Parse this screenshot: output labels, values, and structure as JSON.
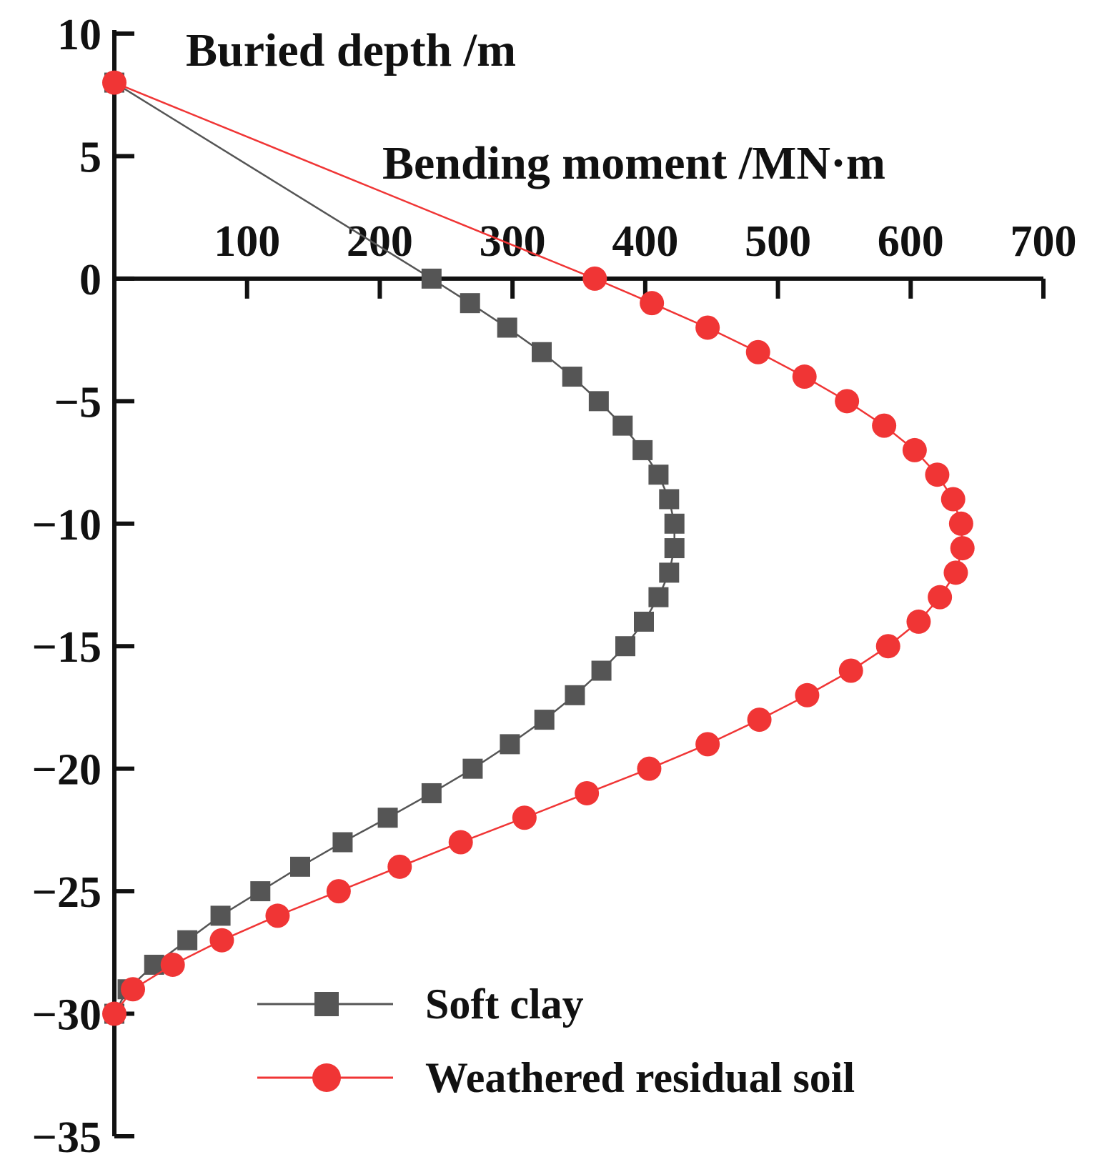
{
  "chart_data": {
    "type": "line",
    "title": "",
    "xlabel": "Bending moment /MN·m",
    "ylabel": "Buried depth /m",
    "xlim": [
      0,
      700
    ],
    "ylim": [
      -35,
      10
    ],
    "x_ticks": [
      100,
      200,
      300,
      400,
      500,
      600,
      700
    ],
    "y_ticks": [
      10,
      5,
      0,
      -5,
      -10,
      -15,
      -20,
      -25,
      -30,
      -35
    ],
    "x_axis_position": "top, crossing at depth 0",
    "grid": false,
    "legend_position": "bottom-center",
    "series": [
      {
        "name": "Soft clay",
        "color": "#555555",
        "marker": "square",
        "points": [
          [
            0,
            8
          ],
          [
            239,
            0
          ],
          [
            268,
            -1
          ],
          [
            296,
            -2
          ],
          [
            322,
            -3
          ],
          [
            345,
            -4
          ],
          [
            365,
            -5
          ],
          [
            383,
            -6
          ],
          [
            398,
            -7
          ],
          [
            410,
            -8
          ],
          [
            418,
            -9
          ],
          [
            422,
            -10
          ],
          [
            422,
            -11
          ],
          [
            418,
            -12
          ],
          [
            410,
            -13
          ],
          [
            399,
            -14
          ],
          [
            385,
            -15
          ],
          [
            367,
            -16
          ],
          [
            347,
            -17
          ],
          [
            324,
            -18
          ],
          [
            298,
            -19
          ],
          [
            270,
            -20
          ],
          [
            239,
            -21
          ],
          [
            206,
            -22
          ],
          [
            172,
            -23
          ],
          [
            140,
            -24
          ],
          [
            110,
            -25
          ],
          [
            80,
            -26
          ],
          [
            55,
            -27
          ],
          [
            30,
            -28
          ],
          [
            10,
            -29
          ],
          [
            0,
            -30
          ]
        ]
      },
      {
        "name": "Weathered residual soil",
        "color": "#f03535",
        "marker": "circle",
        "points": [
          [
            0,
            8
          ],
          [
            362,
            0
          ],
          [
            405,
            -1
          ],
          [
            447,
            -2
          ],
          [
            485,
            -3
          ],
          [
            520,
            -4
          ],
          [
            552,
            -5
          ],
          [
            580,
            -6
          ],
          [
            603,
            -7
          ],
          [
            620,
            -8
          ],
          [
            632,
            -9
          ],
          [
            638,
            -10
          ],
          [
            639,
            -11
          ],
          [
            634,
            -12
          ],
          [
            622,
            -13
          ],
          [
            606,
            -14
          ],
          [
            583,
            -15
          ],
          [
            555,
            -16
          ],
          [
            522,
            -17
          ],
          [
            486,
            -18
          ],
          [
            447,
            -19
          ],
          [
            403,
            -20
          ],
          [
            356,
            -21
          ],
          [
            309,
            -22
          ],
          [
            261,
            -23
          ],
          [
            215,
            -24
          ],
          [
            169,
            -25
          ],
          [
            123,
            -26
          ],
          [
            81,
            -27
          ],
          [
            44,
            -28
          ],
          [
            14,
            -29
          ],
          [
            0,
            -30
          ]
        ]
      }
    ]
  }
}
